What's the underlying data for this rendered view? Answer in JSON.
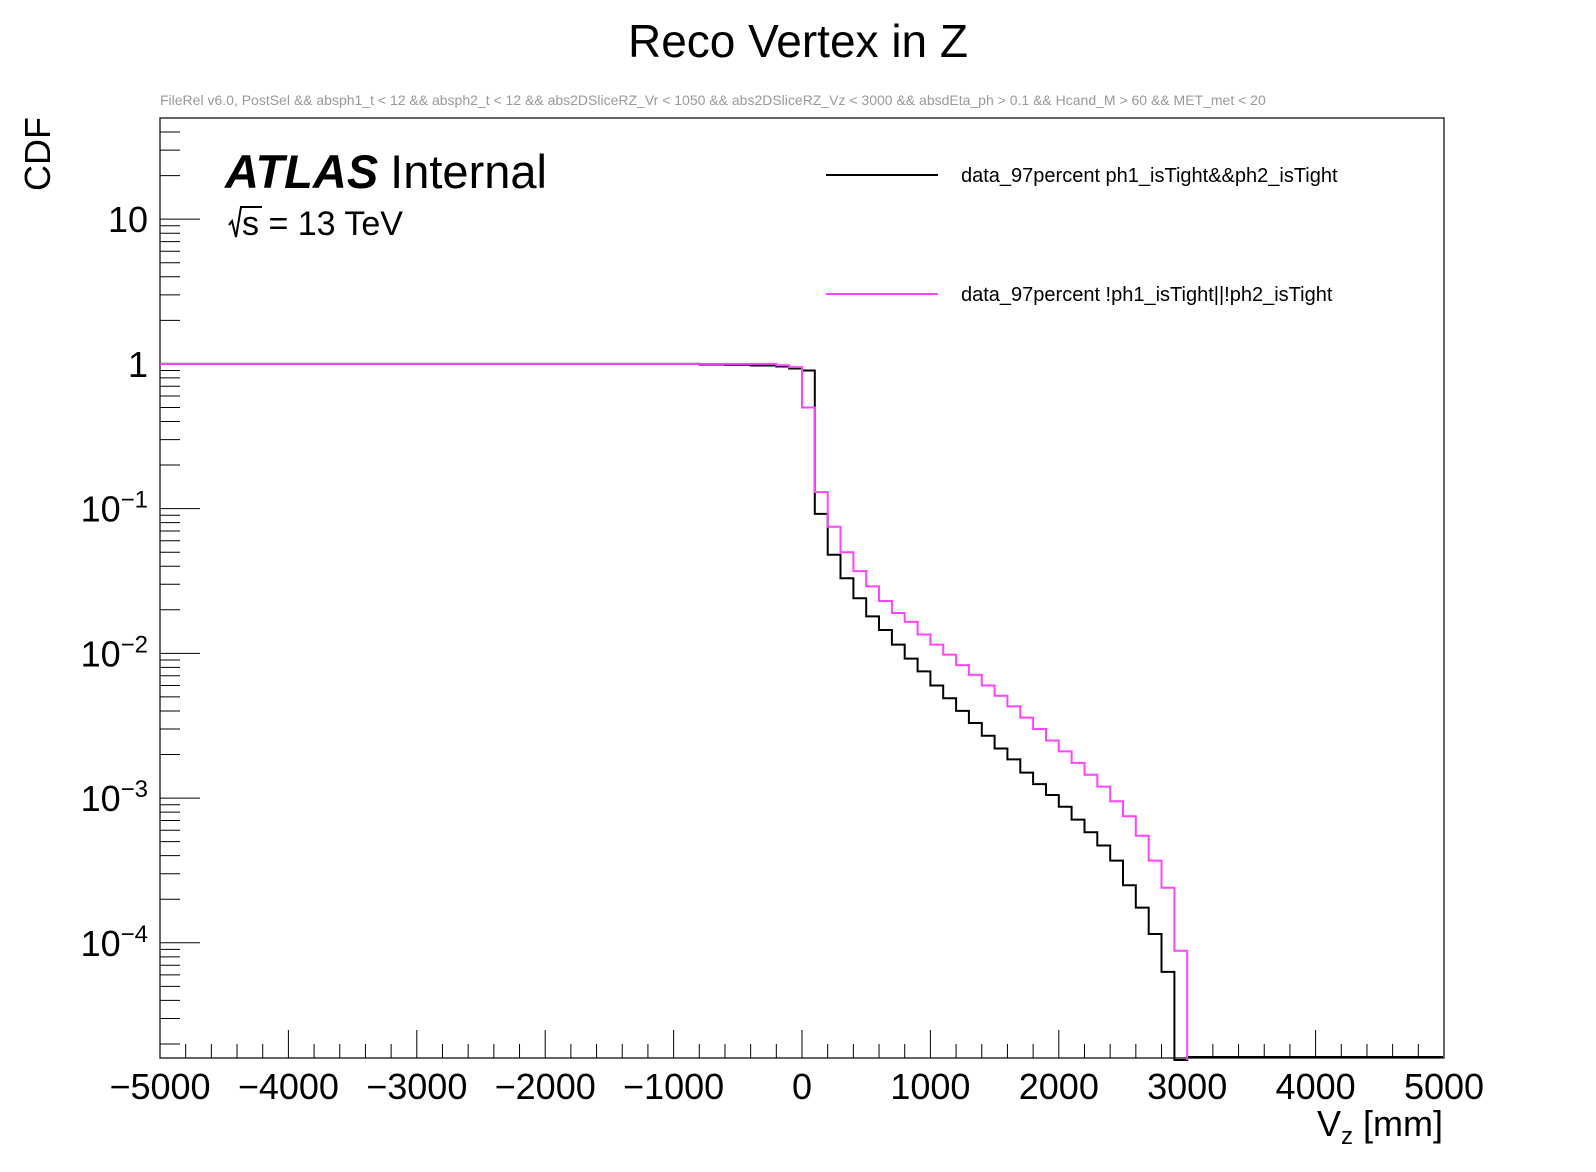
{
  "chart_data": {
    "type": "line",
    "title": "Reco Vertex in Z",
    "subtitle": "FileRel v6.0, PostSel &&  absph1_t < 12 && absph2_t < 12 && abs2DSliceRZ_Vr < 1050 && abs2DSliceRZ_Vz < 3000 && absdEta_ph > 0.1 && Hcand_M > 60 && MET_met < 20",
    "atlas_label": "ATLAS",
    "atlas_status": "Internal",
    "energy_label": "s = 13 TeV",
    "ylabel": "CDF",
    "xlabel_main": "V",
    "xlabel_sub": "z",
    "xlabel_unit": " [mm]",
    "y_scale": "log",
    "xlim": [
      -5000,
      5000
    ],
    "ylim": [
      1.6e-05,
      50
    ],
    "x_ticks": [
      -5000,
      -4000,
      -3000,
      -2000,
      -1000,
      0,
      1000,
      2000,
      3000,
      4000,
      5000
    ],
    "x_tick_labels": [
      "−5000",
      "−4000",
      "−3000",
      "−2000",
      "−1000",
      "0",
      "1000",
      "2000",
      "3000",
      "4000",
      "5000"
    ],
    "y_ticks": [
      {
        "value": 10,
        "base": "10",
        "exp": ""
      },
      {
        "value": 1,
        "base": "1",
        "exp": ""
      },
      {
        "value": 0.1,
        "base": "10",
        "exp": "−1"
      },
      {
        "value": 0.01,
        "base": "10",
        "exp": "−2"
      },
      {
        "value": 0.001,
        "base": "10",
        "exp": "−3"
      },
      {
        "value": 0.0001,
        "base": "10",
        "exp": "−4"
      }
    ],
    "bin_width": 100,
    "grid": false,
    "legend_position": "top-right",
    "series": [
      {
        "name": "data_97percent ph1_isTight&&ph2_isTight",
        "color": "#000000",
        "edges_x": [
          -5000,
          -1200,
          -800,
          -600,
          -400,
          -200,
          -100,
          0,
          100,
          200,
          300,
          400,
          500,
          600,
          700,
          800,
          900,
          1000,
          1100,
          1200,
          1300,
          1400,
          1500,
          1600,
          1700,
          1800,
          1900,
          2000,
          2100,
          2200,
          2300,
          2400,
          2500,
          2600,
          2700,
          2800,
          2900,
          3000
        ],
        "values": [
          1.0,
          1.0,
          0.99,
          0.985,
          0.975,
          0.96,
          0.93,
          0.9,
          0.092,
          0.048,
          0.033,
          0.024,
          0.018,
          0.0145,
          0.0115,
          0.0092,
          0.0075,
          0.006,
          0.0049,
          0.004,
          0.0033,
          0.0027,
          0.0022,
          0.00185,
          0.0015,
          0.00125,
          0.00105,
          0.00087,
          0.00071,
          0.00058,
          0.00047,
          0.00037,
          0.00025,
          0.000175,
          0.000115,
          6.3e-05,
          1.55e-05
        ]
      },
      {
        "name": "data_97percent !ph1_isTight||!ph2_isTight",
        "color": "#ff44ff",
        "edges_x": [
          -5000,
          -200,
          -100,
          0,
          100,
          200,
          300,
          400,
          500,
          600,
          700,
          800,
          900,
          1000,
          1100,
          1200,
          1300,
          1400,
          1500,
          1600,
          1700,
          1800,
          1900,
          2000,
          2100,
          2200,
          2300,
          2400,
          2500,
          2600,
          2700,
          2800,
          2900,
          3000
        ],
        "values": [
          1.0,
          0.98,
          0.95,
          0.5,
          0.13,
          0.075,
          0.05,
          0.037,
          0.029,
          0.023,
          0.019,
          0.0165,
          0.0135,
          0.0115,
          0.0098,
          0.0083,
          0.0071,
          0.006,
          0.0051,
          0.0043,
          0.0036,
          0.003,
          0.0025,
          0.0021,
          0.00175,
          0.00145,
          0.0012,
          0.00095,
          0.00075,
          0.00055,
          0.00037,
          0.00024,
          8.8e-05,
          1.55e-05
        ]
      }
    ]
  }
}
